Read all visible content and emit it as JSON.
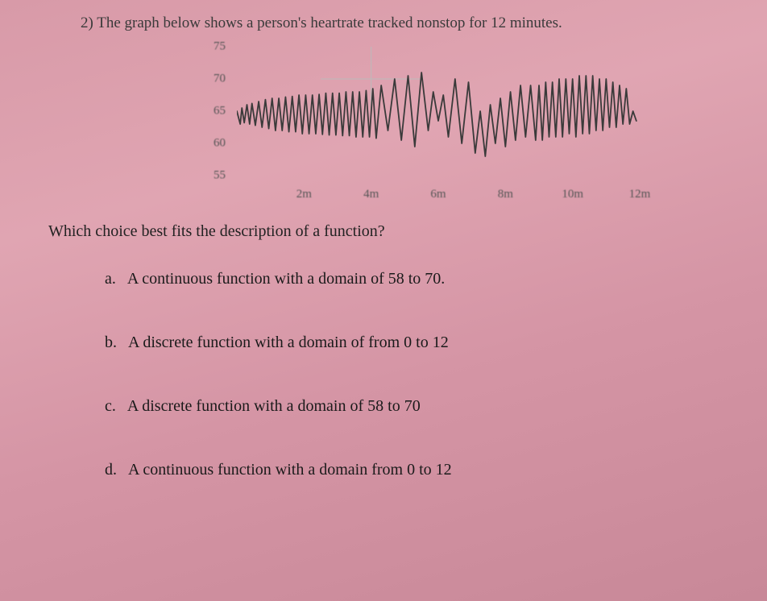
{
  "question": {
    "number": "2)",
    "text": "The graph below shows a person's heartrate tracked nonstop for 12 minutes."
  },
  "chart": {
    "type": "line",
    "y_ticks": [
      {
        "label": "75",
        "value": 75
      },
      {
        "label": "70",
        "value": 70
      },
      {
        "label": "65",
        "value": 65
      },
      {
        "label": "60",
        "value": 60
      },
      {
        "label": "55",
        "value": 55
      }
    ],
    "ylim": [
      55,
      75
    ],
    "x_ticks": [
      {
        "label": "2m",
        "value": 2
      },
      {
        "label": "4m",
        "value": 4
      },
      {
        "label": "6m",
        "value": 6
      },
      {
        "label": "8m",
        "value": 8
      },
      {
        "label": "10m",
        "value": 10
      },
      {
        "label": "12m",
        "value": 12
      }
    ],
    "xlim": [
      0,
      12
    ],
    "line_color": "#3a3a3a",
    "line_width": 1.8,
    "tick_color": "#555555",
    "tick_fontsize": 15,
    "grid_visible": false,
    "crosshair_color": "#bbbbbb",
    "series_points": [
      [
        0.0,
        65.0
      ],
      [
        0.1,
        63.0
      ],
      [
        0.15,
        65.5
      ],
      [
        0.22,
        63.2
      ],
      [
        0.3,
        66.0
      ],
      [
        0.38,
        63.0
      ],
      [
        0.45,
        66.2
      ],
      [
        0.55,
        62.8
      ],
      [
        0.65,
        66.5
      ],
      [
        0.75,
        62.5
      ],
      [
        0.85,
        66.8
      ],
      [
        0.95,
        62.3
      ],
      [
        1.05,
        67.0
      ],
      [
        1.15,
        62.0
      ],
      [
        1.25,
        67.0
      ],
      [
        1.35,
        62.0
      ],
      [
        1.45,
        67.2
      ],
      [
        1.55,
        61.8
      ],
      [
        1.65,
        67.3
      ],
      [
        1.75,
        61.8
      ],
      [
        1.85,
        67.5
      ],
      [
        1.95,
        61.5
      ],
      [
        2.05,
        67.5
      ],
      [
        2.15,
        61.5
      ],
      [
        2.25,
        67.5
      ],
      [
        2.35,
        61.5
      ],
      [
        2.45,
        67.6
      ],
      [
        2.55,
        61.4
      ],
      [
        2.65,
        67.8
      ],
      [
        2.75,
        61.3
      ],
      [
        2.85,
        67.8
      ],
      [
        2.95,
        61.3
      ],
      [
        3.05,
        67.8
      ],
      [
        3.15,
        61.2
      ],
      [
        3.25,
        68.0
      ],
      [
        3.35,
        61.2
      ],
      [
        3.45,
        68.0
      ],
      [
        3.55,
        61.0
      ],
      [
        3.65,
        68.0
      ],
      [
        3.75,
        61.0
      ],
      [
        3.85,
        68.2
      ],
      [
        3.95,
        61.0
      ],
      [
        4.05,
        68.5
      ],
      [
        4.15,
        60.8
      ],
      [
        4.3,
        69.0
      ],
      [
        4.5,
        62.0
      ],
      [
        4.7,
        70.0
      ],
      [
        4.9,
        60.5
      ],
      [
        5.1,
        70.5
      ],
      [
        5.3,
        59.5
      ],
      [
        5.5,
        71.0
      ],
      [
        5.7,
        62.0
      ],
      [
        5.85,
        68.0
      ],
      [
        6.0,
        63.5
      ],
      [
        6.15,
        67.5
      ],
      [
        6.3,
        61.0
      ],
      [
        6.5,
        70.0
      ],
      [
        6.7,
        60.0
      ],
      [
        6.9,
        69.5
      ],
      [
        7.1,
        58.5
      ],
      [
        7.25,
        65.0
      ],
      [
        7.4,
        58.0
      ],
      [
        7.55,
        66.0
      ],
      [
        7.7,
        60.0
      ],
      [
        7.85,
        67.0
      ],
      [
        8.0,
        59.5
      ],
      [
        8.15,
        68.0
      ],
      [
        8.3,
        60.5
      ],
      [
        8.45,
        69.0
      ],
      [
        8.6,
        61.0
      ],
      [
        8.75,
        69.0
      ],
      [
        8.9,
        60.5
      ],
      [
        9.0,
        69.0
      ],
      [
        9.1,
        60.5
      ],
      [
        9.2,
        69.5
      ],
      [
        9.3,
        61.0
      ],
      [
        9.4,
        69.5
      ],
      [
        9.5,
        61.0
      ],
      [
        9.6,
        70.0
      ],
      [
        9.7,
        61.0
      ],
      [
        9.8,
        70.0
      ],
      [
        9.9,
        61.5
      ],
      [
        10.0,
        70.0
      ],
      [
        10.1,
        61.0
      ],
      [
        10.2,
        70.5
      ],
      [
        10.3,
        61.5
      ],
      [
        10.4,
        70.5
      ],
      [
        10.5,
        61.5
      ],
      [
        10.6,
        70.5
      ],
      [
        10.7,
        62.0
      ],
      [
        10.8,
        70.0
      ],
      [
        10.9,
        62.0
      ],
      [
        11.0,
        70.0
      ],
      [
        11.1,
        62.5
      ],
      [
        11.2,
        69.5
      ],
      [
        11.3,
        62.5
      ],
      [
        11.4,
        69.0
      ],
      [
        11.5,
        63.0
      ],
      [
        11.6,
        68.5
      ],
      [
        11.7,
        63.0
      ],
      [
        11.8,
        65.0
      ],
      [
        11.9,
        63.5
      ]
    ]
  },
  "prompt": "Which choice best fits the description of a function?",
  "choices": [
    {
      "letter": "a.",
      "text": "A continuous function with a domain of 58 to 70."
    },
    {
      "letter": "b.",
      "text": "A discrete function with a domain of from 0 to 12"
    },
    {
      "letter": "c.",
      "text": "A discrete function with a domain of 58 to 70"
    },
    {
      "letter": "d.",
      "text": "A continuous function with a domain from 0 to 12"
    }
  ]
}
